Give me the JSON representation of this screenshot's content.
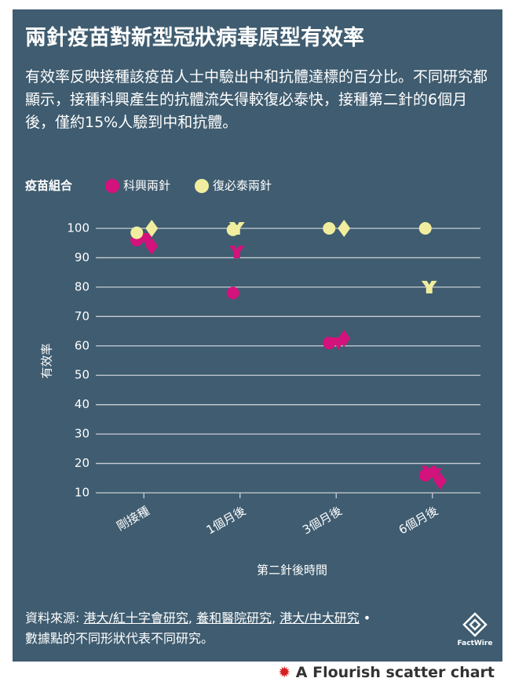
{
  "chart_data": {
    "type": "scatter",
    "title": "兩針疫苗對新型冠狀病毒原型有效率",
    "subtitle": "有效率反映接種該疫苗人士中驗出中和抗體達標的百分比。不同研究都顯示，接種科興產生的抗體流失得較復必泰快，接種第二針的6個月後，僅約15%人驗到中和抗體。",
    "legend_title": "疫苗組合",
    "categories": [
      "剛接種",
      "1個月後",
      "3個月後",
      "6個月後"
    ],
    "x_label": "第二針後時間",
    "y_label": "有效率",
    "ylim": [
      10,
      100
    ],
    "yticks": [
      10,
      20,
      30,
      40,
      50,
      60,
      70,
      80,
      90,
      100
    ],
    "grid": true,
    "series": [
      {
        "name": "科興兩針",
        "color": "#d4127c",
        "x": [
          "剛接種",
          "剛接種",
          "剛接種",
          "1個月後",
          "1個月後",
          "3個月後",
          "3個月後",
          "3個月後",
          "6個月後",
          "6個月後",
          "6個月後",
          "6個月後"
        ],
        "values": [
          94,
          96,
          96.5,
          92,
          78,
          62.5,
          61,
          61,
          14,
          16,
          17,
          16.5
        ],
        "shapes": [
          "diamond",
          "circle",
          "triangle",
          "y",
          "circle",
          "diamond",
          "circle",
          "triangle",
          "diamond",
          "circle",
          "y",
          "triangle"
        ]
      },
      {
        "name": "復必泰兩針",
        "color": "#f0ee9e",
        "x": [
          "剛接種",
          "剛接種",
          "1個月後",
          "1個月後",
          "3個月後",
          "3個月後",
          "6個月後",
          "6個月後"
        ],
        "values": [
          98.5,
          100,
          100,
          99.5,
          100,
          100,
          100,
          80
        ],
        "shapes": [
          "circle",
          "diamond",
          "y",
          "circle",
          "diamond",
          "circle",
          "circle",
          "y"
        ]
      }
    ],
    "source": {
      "label": "資料來源:",
      "links": [
        "港大/紅十字會研究",
        "養和醫院研究",
        "港大/中大研究"
      ],
      "separator": ",",
      "bullet": "•",
      "note": "數據點的不同形狀代表不同研究。"
    },
    "logo": "FactWire",
    "footer": "A Flourish scatter chart"
  }
}
